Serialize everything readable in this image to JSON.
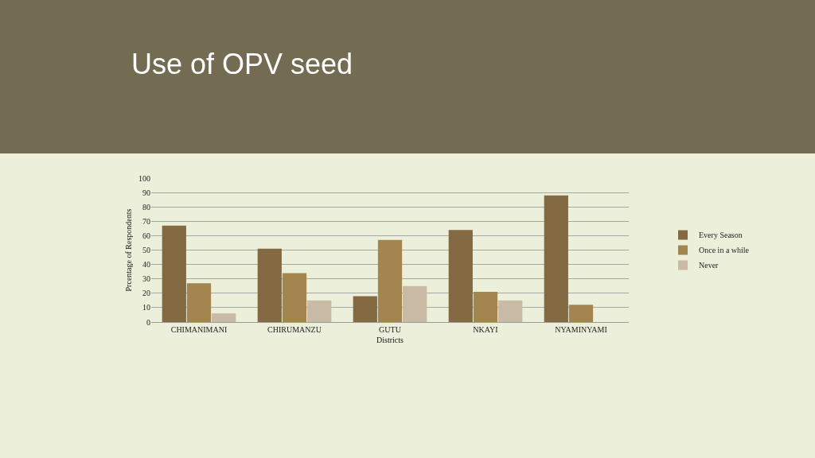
{
  "chart_data": {
    "type": "bar",
    "title": "Use of OPV seed",
    "xlabel": "Districts",
    "ylabel": "Prcentage of Respondents",
    "categories": [
      "CHIMANIMANI",
      "CHIRUMANZU",
      "GUTU",
      "NKAYI",
      "NYAMINYAMI"
    ],
    "series": [
      {
        "name": "Every Season",
        "color": "#836a42",
        "values": [
          67,
          51,
          18,
          64,
          88
        ]
      },
      {
        "name": "Once in a while",
        "color": "#a3854f",
        "values": [
          27,
          34,
          57,
          21,
          12
        ]
      },
      {
        "name": "Never",
        "color": "#c9baa5",
        "values": [
          6,
          15,
          25,
          15,
          null
        ]
      }
    ],
    "ylim": [
      0,
      100
    ],
    "yticks": [
      0,
      10,
      20,
      30,
      40,
      50,
      60,
      70,
      80,
      90,
      100
    ],
    "grid": "y",
    "legend": "right"
  }
}
